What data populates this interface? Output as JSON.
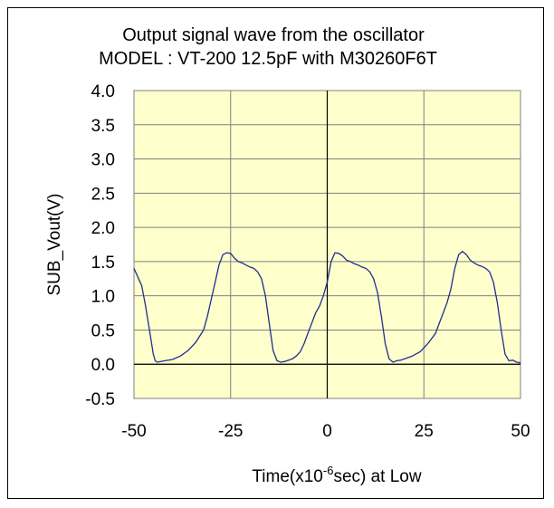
{
  "chart_data": {
    "type": "line",
    "title": "Output signal wave from the oscillator",
    "subtitle": "MODEL : VT-200 12.5pF with M30260F6T",
    "xlabel_prefix": "Time(x10",
    "xlabel_exponent": "-6",
    "xlabel_suffix": "sec)   at   Low",
    "ylabel": "SUB_Vout(V)",
    "xlim": [
      -50,
      50
    ],
    "ylim": [
      -0.5,
      4.0
    ],
    "xticks": [
      -50,
      -25,
      0,
      25,
      50
    ],
    "xtick_labels": [
      "-50",
      "-25",
      "0",
      "25",
      "50"
    ],
    "yticks": [
      -0.5,
      0.0,
      0.5,
      1.0,
      1.5,
      2.0,
      2.5,
      3.0,
      3.5,
      4.0
    ],
    "ytick_labels": [
      "-0.5",
      "0.0",
      "0.5",
      "1.0",
      "1.5",
      "2.0",
      "2.5",
      "3.0",
      "3.5",
      "4.0"
    ],
    "grid": true,
    "plot_background": "#ffffcc",
    "series": [
      {
        "color": "#1f2f8f",
        "x": [
          -50,
          -48,
          -47,
          -46,
          -45,
          -44.5,
          -44,
          -42,
          -40,
          -38,
          -36,
          -34,
          -32,
          -31,
          -30,
          -29,
          -28,
          -27,
          -26,
          -25,
          -24,
          -23,
          -22,
          -21,
          -20,
          -19,
          -18,
          -17,
          -16,
          -15,
          -14,
          -13,
          -12,
          -11,
          -10,
          -9,
          -8,
          -7,
          -6,
          -5,
          -4,
          -3,
          -2,
          -1,
          0,
          1,
          2,
          3,
          4,
          5,
          6,
          7,
          8,
          9,
          10,
          11,
          12,
          13,
          14,
          15,
          16,
          17,
          18,
          19,
          20,
          22,
          24,
          26,
          28,
          29,
          30,
          31,
          32,
          33,
          34,
          35,
          36,
          37,
          38,
          39,
          40,
          41,
          42,
          43,
          44,
          45,
          46,
          47,
          48,
          49,
          50
        ],
        "y": [
          1.4,
          1.15,
          0.85,
          0.5,
          0.15,
          0.05,
          0.03,
          0.05,
          0.07,
          0.12,
          0.2,
          0.32,
          0.5,
          0.7,
          0.95,
          1.2,
          1.45,
          1.6,
          1.63,
          1.62,
          1.55,
          1.5,
          1.48,
          1.45,
          1.42,
          1.4,
          1.35,
          1.25,
          1.0,
          0.6,
          0.2,
          0.05,
          0.03,
          0.04,
          0.06,
          0.08,
          0.12,
          0.18,
          0.3,
          0.45,
          0.6,
          0.75,
          0.85,
          1.0,
          1.2,
          1.5,
          1.63,
          1.62,
          1.58,
          1.52,
          1.5,
          1.47,
          1.45,
          1.42,
          1.4,
          1.35,
          1.25,
          1.05,
          0.7,
          0.3,
          0.08,
          0.03,
          0.05,
          0.06,
          0.08,
          0.12,
          0.18,
          0.3,
          0.45,
          0.6,
          0.75,
          0.9,
          1.1,
          1.4,
          1.6,
          1.65,
          1.6,
          1.52,
          1.48,
          1.45,
          1.43,
          1.4,
          1.35,
          1.2,
          0.9,
          0.5,
          0.15,
          0.05,
          0.06,
          0.03,
          0.02
        ]
      }
    ]
  }
}
